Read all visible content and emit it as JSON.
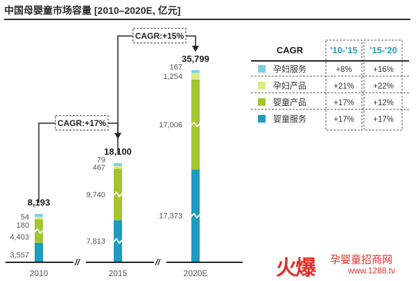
{
  "title": "中国母婴童市场容量 [2010–2020E, 亿元]",
  "chart_data": {
    "type": "bar",
    "stacked": true,
    "categories": [
      "2010",
      "2015",
      "2020E"
    ],
    "series": [
      {
        "name": "婴童服务",
        "color": "#1e9bbf",
        "values": [
          3557,
          7813,
          17373
        ]
      },
      {
        "name": "婴童产品",
        "color": "#a3c52e",
        "values": [
          4403,
          9740,
          17006
        ]
      },
      {
        "name": "孕妇产品",
        "color": "#dbea8a",
        "values": [
          180,
          467,
          1254
        ]
      },
      {
        "name": "孕妇服务",
        "color": "#7fcfe3",
        "values": [
          54,
          79,
          167
        ]
      }
    ],
    "value_labels": [
      [
        "3,557",
        "4,403",
        "180",
        "54"
      ],
      [
        "7,813",
        "9,740",
        "467",
        "79"
      ],
      [
        "17,373",
        "17,006",
        "1,254",
        "167"
      ]
    ],
    "totals": [
      "8,193",
      "18,100",
      "35,799"
    ],
    "axis_break_marks": [
      "//",
      "//"
    ],
    "cagr_callouts": [
      "CAGR:+17%",
      "CAGR:+15%"
    ],
    "legend_placement": "right",
    "grid": false
  },
  "cagr_table": {
    "header": "CAGR",
    "columns": [
      "'10-'15",
      "'15-'20"
    ],
    "rows": [
      {
        "name": "孕妇服务",
        "color": "#7fcfe3",
        "values": [
          "+8%",
          "+16%"
        ]
      },
      {
        "name": "孕妇产品",
        "color": "#dbea8a",
        "values": [
          "+21%",
          "+22%"
        ]
      },
      {
        "name": "婴童产品",
        "color": "#a3c52e",
        "values": [
          "+17%",
          "+12%"
        ]
      },
      {
        "name": "婴童服务",
        "color": "#1e9bbf",
        "values": [
          "+17%",
          "+17%"
        ]
      }
    ]
  },
  "watermark": {
    "logo": "火爆",
    "name": "孕婴童招商网",
    "url": "www.1288.tv"
  }
}
